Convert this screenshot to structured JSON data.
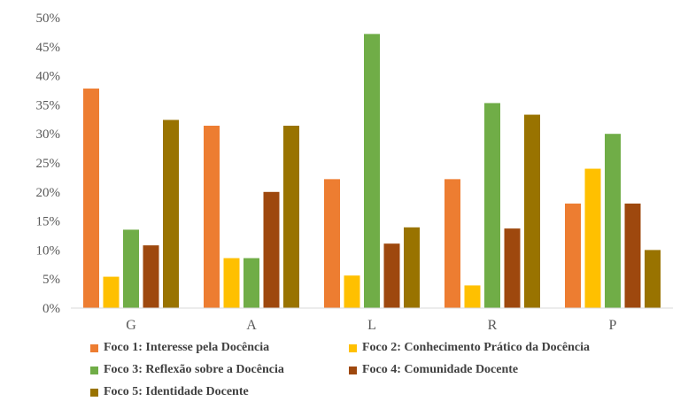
{
  "chart_data": {
    "type": "bar",
    "categories": [
      "G",
      "A",
      "L",
      "R",
      "P"
    ],
    "y_ticks": [
      "0%",
      "5%",
      "10%",
      "15%",
      "20%",
      "25%",
      "30%",
      "35%",
      "40%",
      "45%",
      "50%"
    ],
    "ylim": [
      0,
      50
    ],
    "grid": false,
    "legend_position": "bottom",
    "series": [
      {
        "name": "Foco 1: Interesse pela Docência",
        "color": "#ED7D31",
        "values": [
          37.8,
          31.4,
          22.2,
          22.2,
          18.0
        ]
      },
      {
        "name": "Foco 2: Conhecimento Prático da Docência",
        "color": "#FFC000",
        "values": [
          5.4,
          8.6,
          5.6,
          3.9,
          24.0
        ]
      },
      {
        "name": "Foco 3: Reflexão sobre a Docência",
        "color": "#70AD47",
        "values": [
          13.5,
          8.6,
          47.2,
          35.3,
          30.0
        ]
      },
      {
        "name": "Foco 4: Comunidade Docente",
        "color": "#9E480E",
        "values": [
          10.8,
          20.0,
          11.1,
          13.7,
          18.0
        ]
      },
      {
        "name": "Foco 5: Identidade Docente",
        "color": "#997300",
        "values": [
          32.4,
          31.4,
          13.9,
          33.3,
          10.0
        ]
      }
    ]
  }
}
